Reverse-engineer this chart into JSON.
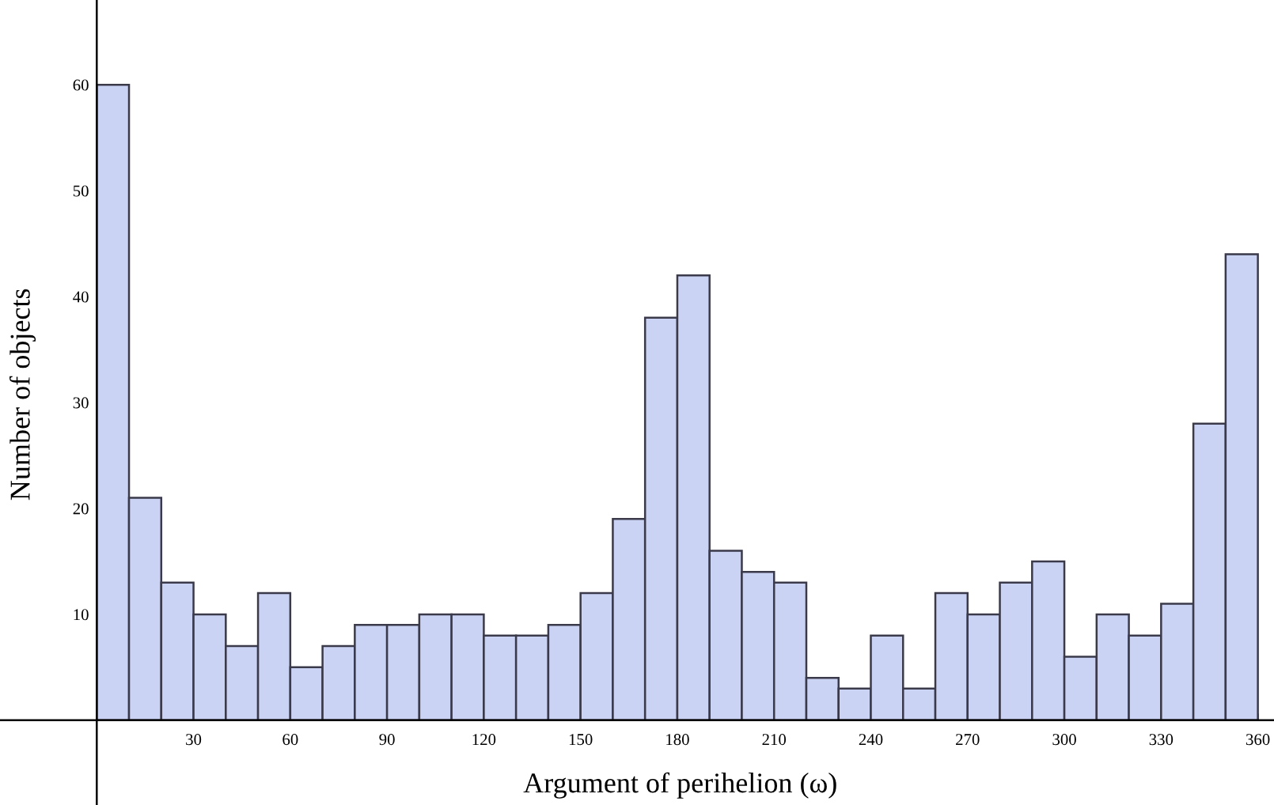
{
  "chart_data": {
    "type": "histogram",
    "xlabel": "Argument of perihelion (ω)",
    "ylabel": "Number of objects",
    "bins": [
      0,
      10,
      20,
      30,
      40,
      50,
      60,
      70,
      80,
      90,
      100,
      110,
      120,
      130,
      140,
      150,
      160,
      170,
      180,
      190,
      200,
      210,
      220,
      230,
      240,
      250,
      260,
      270,
      280,
      290,
      300,
      310,
      320,
      330,
      340,
      350,
      360
    ],
    "values": [
      60,
      21,
      13,
      10,
      7,
      12,
      5,
      7,
      9,
      9,
      10,
      10,
      8,
      8,
      9,
      12,
      19,
      38,
      42,
      16,
      14,
      13,
      4,
      3,
      8,
      3,
      12,
      10,
      13,
      15,
      6,
      10,
      8,
      11,
      28,
      44
    ],
    "color": "#cbd3f5",
    "xlim": [
      -30,
      365
    ],
    "ylim": [
      -8,
      68
    ],
    "xticks": [
      30,
      60,
      90,
      120,
      150,
      180,
      210,
      240,
      270,
      300,
      330,
      360
    ],
    "yticks": [
      10,
      20,
      30,
      40,
      50,
      60
    ],
    "grid": false
  }
}
